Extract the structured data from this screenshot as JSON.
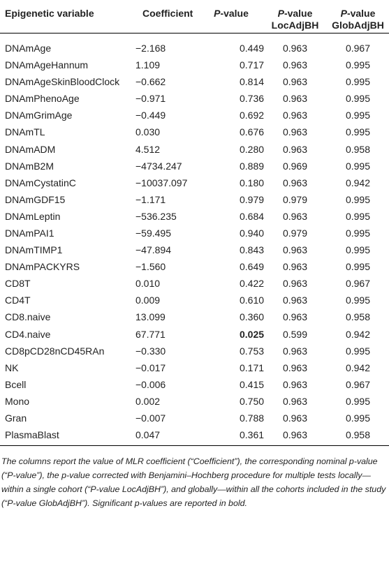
{
  "table": {
    "headers": [
      {
        "line1": "Epigenetic variable",
        "line2": ""
      },
      {
        "line1": "Coefficient",
        "line2": ""
      },
      {
        "line1": "P-value",
        "line2": ""
      },
      {
        "line1": "P-value",
        "line2": "LocAdjBH"
      },
      {
        "line1": "P-value",
        "line2": "GlobAdjBH"
      }
    ],
    "rows": [
      [
        "DNAmAge",
        "−2.168",
        "0.449",
        "0.963",
        "0.967"
      ],
      [
        "DNAmAgeHannum",
        "1.109",
        "0.717",
        "0.963",
        "0.995"
      ],
      [
        "DNAmAgeSkinBloodClock",
        "−0.662",
        "0.814",
        "0.963",
        "0.995"
      ],
      [
        "DNAmPhenoAge",
        "−0.971",
        "0.736",
        "0.963",
        "0.995"
      ],
      [
        "DNAmGrimAge",
        "−0.449",
        "0.692",
        "0.963",
        "0.995"
      ],
      [
        "DNAmTL",
        "0.030",
        "0.676",
        "0.963",
        "0.995"
      ],
      [
        "DNAmADM",
        "4.512",
        "0.280",
        "0.963",
        "0.958"
      ],
      [
        "DNAmB2M",
        "−4734.247",
        "0.889",
        "0.969",
        "0.995"
      ],
      [
        "DNAmCystatinC",
        "−10037.097",
        "0.180",
        "0.963",
        "0.942"
      ],
      [
        "DNAmGDF15",
        "−1.171",
        "0.979",
        "0.979",
        "0.995"
      ],
      [
        "DNAmLeptin",
        "−536.235",
        "0.684",
        "0.963",
        "0.995"
      ],
      [
        "DNAmPAI1",
        "−59.495",
        "0.940",
        "0.979",
        "0.995"
      ],
      [
        "DNAmTIMP1",
        "−47.894",
        "0.843",
        "0.963",
        "0.995"
      ],
      [
        "DNAmPACKYRS",
        "−1.560",
        "0.649",
        "0.963",
        "0.995"
      ],
      [
        "CD8T",
        "0.010",
        "0.422",
        "0.963",
        "0.967"
      ],
      [
        "CD4T",
        "0.009",
        "0.610",
        "0.963",
        "0.995"
      ],
      [
        "CD8.naive",
        "13.099",
        "0.360",
        "0.963",
        "0.958"
      ],
      [
        "CD4.naive",
        "67.771",
        "0.025",
        "0.599",
        "0.942"
      ],
      [
        "CD8pCD28nCD45RAn",
        "−0.330",
        "0.753",
        "0.963",
        "0.995"
      ],
      [
        "NK",
        "−0.017",
        "0.171",
        "0.963",
        "0.942"
      ],
      [
        "Bcell",
        "−0.006",
        "0.415",
        "0.963",
        "0.967"
      ],
      [
        "Mono",
        "0.002",
        "0.750",
        "0.963",
        "0.995"
      ],
      [
        "Gran",
        "−0.007",
        "0.788",
        "0.963",
        "0.995"
      ],
      [
        "PlasmaBlast",
        "0.047",
        "0.361",
        "0.963",
        "0.958"
      ]
    ],
    "bold_cells": [
      {
        "row": 17,
        "col": 2
      }
    ]
  },
  "footnote": "The columns report the value of MLR coefficient (“Coefficient”), the corresponding nominal p-value (“P-value”), the p-value corrected with Benjamini–Hochberg procedure for multiple tests locally—within a single cohort (“P-value LocAdjBH”), and globally—within all the cohorts included in the study (“P-value GlobAdjBH”). Significant p-values are reported in bold."
}
